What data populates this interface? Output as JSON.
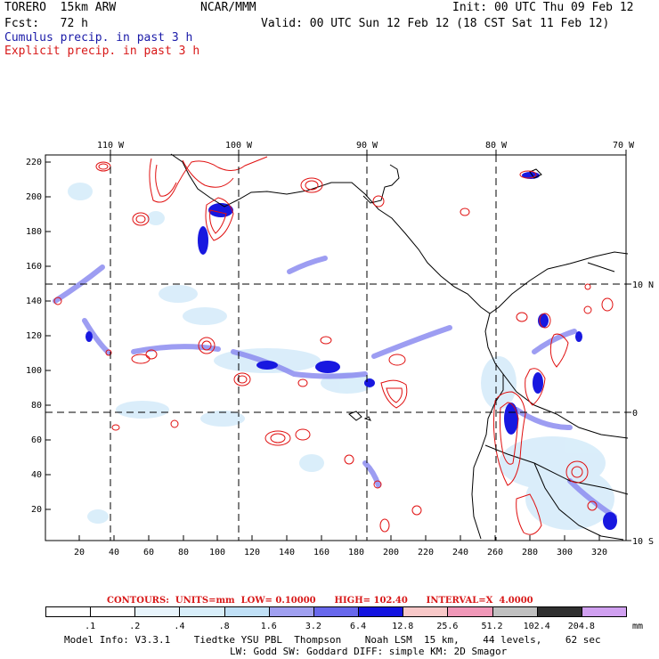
{
  "header": {
    "model": "TORERO  15km ARW",
    "center": "NCAR/MMM",
    "init": "Init: 00 UTC Thu 09 Feb 12",
    "fcst": "Fcst:   72 h",
    "valid": "Valid: 00 UTC Sun 12 Feb 12 (18 CST Sat 11 Feb 12)",
    "legend_cumulus": "Cumulus precip. in past 3 h",
    "legend_explicit": "Explicit precip. in past 3 h"
  },
  "colors": {
    "cumulus_text": "#1a1aa8",
    "explicit_text": "#d81818",
    "contour": "#e01010",
    "precip_light": "#c8e4f8",
    "precip_mid": "#6a6af0",
    "precip_heavy": "#1010e0"
  },
  "map": {
    "top_lon_labels": [
      "110 W",
      "100 W",
      "90 W",
      "80 W",
      "70 W"
    ],
    "right_lat_labels": [
      "10 N",
      "0",
      "10 S"
    ],
    "left_ticks": [
      "220",
      "200",
      "180",
      "160",
      "140",
      "120",
      "100",
      "80",
      "60",
      "40",
      "20"
    ],
    "bottom_ticks": [
      "20",
      "40",
      "60",
      "80",
      "100",
      "120",
      "140",
      "160",
      "180",
      "200",
      "220",
      "240",
      "260",
      "280",
      "300",
      "320"
    ]
  },
  "contours_line": "CONTOURS:  UNITS=mm  LOW= 0.10000      HIGH= 102.40      INTERVAL=X  4.0000",
  "colorbar": {
    "labels": [
      ".1",
      ".2",
      ".4",
      ".8",
      "1.6",
      "3.2",
      "6.4",
      "12.8",
      "25.6",
      "51.2",
      "102.4",
      "204.8"
    ],
    "unit": "mm",
    "colors": [
      "#ffffff",
      "#ffffff",
      "#e8f4fc",
      "#d8eefa",
      "#c0e0f6",
      "#a0a0f0",
      "#6868ec",
      "#1414e0",
      "#f8c8c8",
      "#f098b8",
      "#c0c0c0",
      "#303030",
      "#d0a0f0"
    ]
  },
  "footer": {
    "line1": "Model Info: V3.3.1    Tiedtke YSU PBL  Thompson    Noah LSM  15 km,    44 levels,    62 sec",
    "line2": "LW: Godd SW: Goddard DIFF: simple KM: 2D Smagor"
  }
}
